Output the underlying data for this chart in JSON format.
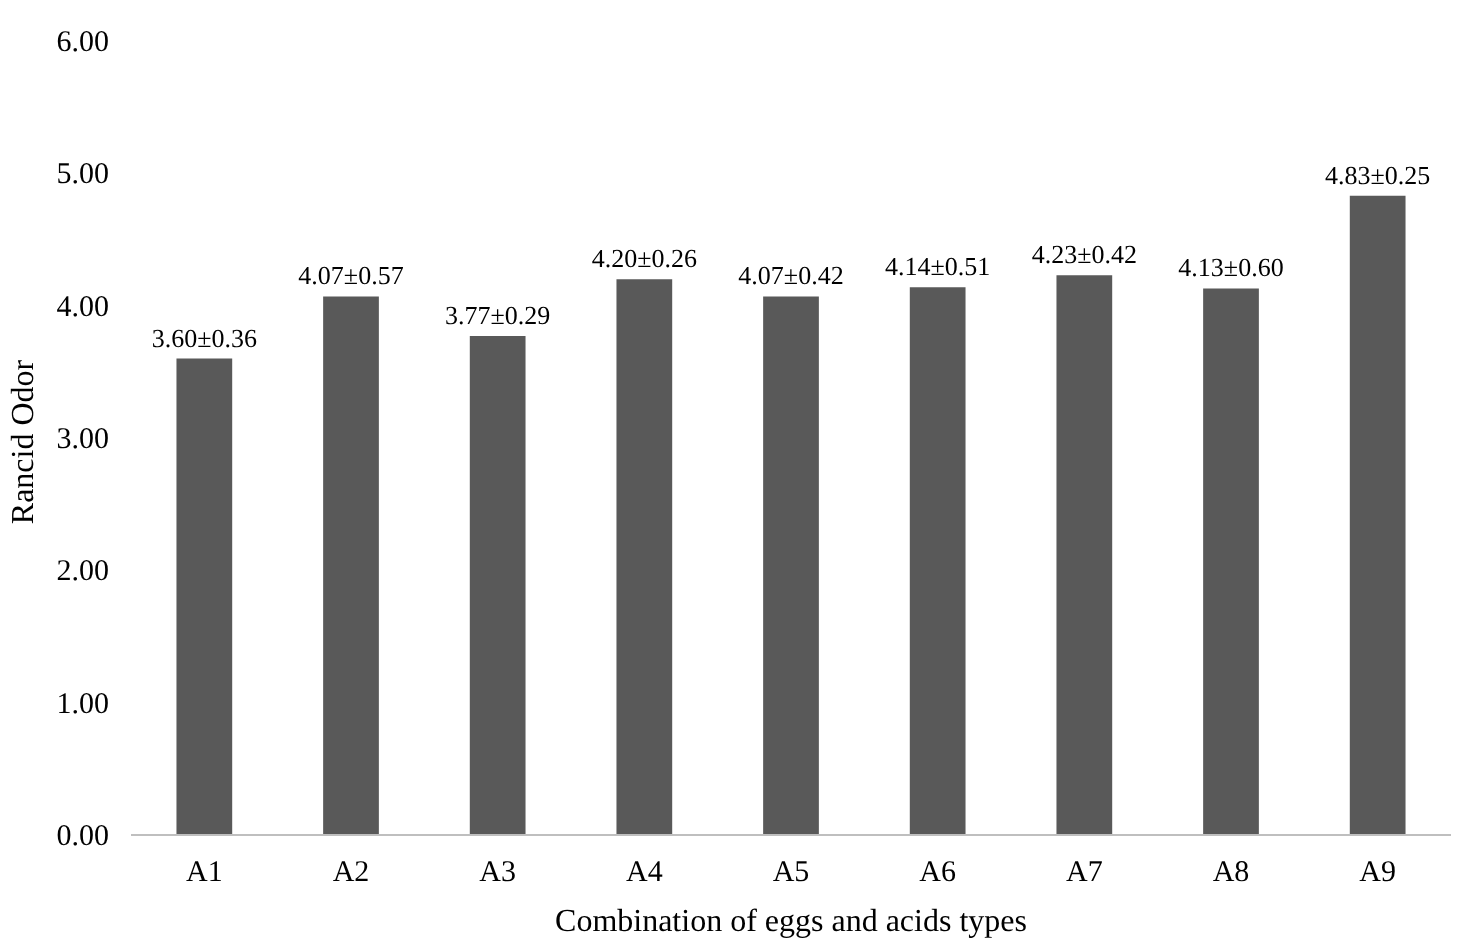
{
  "chart_data": {
    "type": "bar",
    "xlabel": "Combination of eggs and acids types",
    "ylabel": "Rancid  Odor",
    "categories": [
      "A1",
      "A2",
      "A3",
      "A4",
      "A5",
      "A6",
      "A7",
      "A8",
      "A9"
    ],
    "values": [
      3.6,
      4.07,
      3.77,
      4.2,
      4.07,
      4.14,
      4.23,
      4.13,
      4.83
    ],
    "value_labels": [
      "3.60±0.36",
      "4.07±0.57",
      "3.77±0.29",
      "4.20±0.26",
      "4.07±0.42",
      "4.14±0.51",
      "4.23±0.42",
      "4.13±0.60",
      "4.83±0.25"
    ],
    "color": "#595959",
    "ylim": [
      0,
      6
    ],
    "yticks": [
      {
        "value": 0,
        "label": "0.00"
      },
      {
        "value": 1,
        "label": "1.00"
      },
      {
        "value": 2,
        "label": "2.00"
      },
      {
        "value": 3,
        "label": "3.00"
      },
      {
        "value": 4,
        "label": "4.00"
      },
      {
        "value": 5,
        "label": "5.00"
      },
      {
        "value": 6,
        "label": "6.00"
      }
    ],
    "grid": false
  }
}
